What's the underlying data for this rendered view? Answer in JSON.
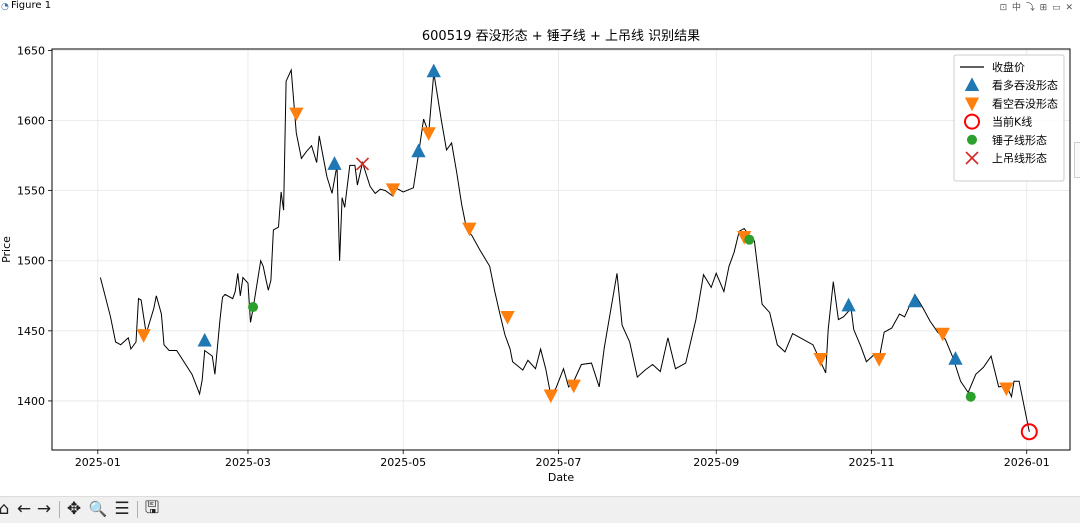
{
  "window": {
    "title": "Figure 1",
    "controls": "⊡ 中 ⤵ ⊞ ▭ ✕"
  },
  "toolbar": {
    "buttons": [
      {
        "name": "home-button",
        "glyph": "⌂"
      },
      {
        "name": "back-button",
        "glyph": "←"
      },
      {
        "name": "forward-button",
        "glyph": "→"
      },
      {
        "name": "pan-button",
        "glyph": "✥"
      },
      {
        "name": "zoom-button",
        "glyph": "🔍"
      },
      {
        "name": "configure-button",
        "glyph": "☰"
      },
      {
        "name": "save-button",
        "glyph": "🖫"
      }
    ]
  },
  "chart_data": {
    "type": "line",
    "title": "600519 吞没形态 + 锤子线 + 上吊线 识别结果",
    "xlabel": "Date",
    "ylabel": "Price",
    "xlim": [
      "2024-12-14",
      "2026-01-18"
    ],
    "ylim": [
      1365,
      1651
    ],
    "grid": true,
    "legend_position": "top-right",
    "x_ticks": [
      "2025-01",
      "2025-03",
      "2025-05",
      "2025-07",
      "2025-09",
      "2025-11",
      "2026-01"
    ],
    "x_tick_dates": [
      "2025-01-01",
      "2025-03-01",
      "2025-05-01",
      "2025-07-01",
      "2025-09-01",
      "2025-11-01",
      "2026-01-01"
    ],
    "y_ticks": [
      1400,
      1450,
      1500,
      1550,
      1600,
      1650
    ],
    "legend": [
      "收盘价",
      "看多吞没形态",
      "看空吞没形态",
      "当前K线",
      "锤子线形态",
      "上吊线形态"
    ],
    "colors": {
      "line": "#000000",
      "bullish": "#1f77b4",
      "bearish": "#ff7f0e",
      "hammer": "#2ca02c",
      "hanging": "#d62728",
      "current": "#ff0000"
    },
    "series": [
      {
        "name": "收盘价",
        "points": [
          [
            "2025-01-02",
            1488
          ],
          [
            "2025-01-06",
            1460
          ],
          [
            "2025-01-08",
            1442
          ],
          [
            "2025-01-10",
            1440
          ],
          [
            "2025-01-13",
            1445
          ],
          [
            "2025-01-14",
            1437
          ],
          [
            "2025-01-16",
            1442
          ],
          [
            "2025-01-17",
            1473
          ],
          [
            "2025-01-18",
            1472
          ],
          [
            "2025-01-20",
            1448
          ],
          [
            "2025-01-23",
            1466
          ],
          [
            "2025-01-24",
            1475
          ],
          [
            "2025-01-26",
            1462
          ],
          [
            "2025-01-27",
            1440
          ],
          [
            "2025-01-29",
            1436
          ],
          [
            "2025-02-01",
            1436
          ],
          [
            "2025-02-07",
            1419
          ],
          [
            "2025-02-10",
            1405
          ],
          [
            "2025-02-11",
            1415
          ],
          [
            "2025-02-12",
            1436
          ],
          [
            "2025-02-15",
            1432
          ],
          [
            "2025-02-16",
            1419
          ],
          [
            "2025-02-18",
            1458
          ],
          [
            "2025-02-19",
            1474
          ],
          [
            "2025-02-20",
            1476
          ],
          [
            "2025-02-23",
            1473
          ],
          [
            "2025-02-24",
            1478
          ],
          [
            "2025-02-25",
            1491
          ],
          [
            "2025-02-26",
            1475
          ],
          [
            "2025-02-27",
            1488
          ],
          [
            "2025-03-01",
            1484
          ],
          [
            "2025-03-02",
            1456
          ],
          [
            "2025-03-03",
            1466
          ],
          [
            "2025-03-06",
            1500
          ],
          [
            "2025-03-07",
            1496
          ],
          [
            "2025-03-08",
            1487
          ],
          [
            "2025-03-09",
            1479
          ],
          [
            "2025-03-10",
            1486
          ],
          [
            "2025-03-11",
            1522
          ],
          [
            "2025-03-13",
            1524
          ],
          [
            "2025-03-14",
            1549
          ],
          [
            "2025-03-15",
            1536
          ],
          [
            "2025-03-16",
            1628
          ],
          [
            "2025-03-18",
            1636
          ],
          [
            "2025-03-20",
            1591
          ],
          [
            "2025-03-22",
            1573
          ],
          [
            "2025-03-24",
            1578
          ],
          [
            "2025-03-26",
            1582
          ],
          [
            "2025-03-28",
            1570
          ],
          [
            "2025-03-29",
            1589
          ],
          [
            "2025-04-01",
            1560
          ],
          [
            "2025-04-03",
            1548
          ],
          [
            "2025-04-05",
            1568
          ],
          [
            "2025-04-06",
            1500
          ],
          [
            "2025-04-07",
            1545
          ],
          [
            "2025-04-08",
            1538
          ],
          [
            "2025-04-10",
            1568
          ],
          [
            "2025-04-12",
            1568
          ],
          [
            "2025-04-13",
            1554
          ],
          [
            "2025-04-15",
            1570
          ],
          [
            "2025-04-18",
            1553
          ],
          [
            "2025-04-20",
            1548
          ],
          [
            "2025-04-22",
            1551
          ],
          [
            "2025-04-24",
            1550
          ],
          [
            "2025-04-27",
            1546
          ],
          [
            "2025-04-28",
            1552
          ],
          [
            "2025-05-01",
            1549
          ],
          [
            "2025-05-05",
            1552
          ],
          [
            "2025-05-07",
            1576
          ],
          [
            "2025-05-09",
            1601
          ],
          [
            "2025-05-11",
            1591
          ],
          [
            "2025-05-13",
            1634
          ],
          [
            "2025-05-16",
            1600
          ],
          [
            "2025-05-18",
            1579
          ],
          [
            "2025-05-20",
            1584
          ],
          [
            "2025-05-22",
            1563
          ],
          [
            "2025-05-24",
            1540
          ],
          [
            "2025-05-26",
            1522
          ],
          [
            "2025-05-28",
            1518
          ],
          [
            "2025-05-31",
            1508
          ],
          [
            "2025-06-04",
            1496
          ],
          [
            "2025-06-06",
            1478
          ],
          [
            "2025-06-08",
            1462
          ],
          [
            "2025-06-10",
            1447
          ],
          [
            "2025-06-12",
            1437
          ],
          [
            "2025-06-13",
            1428
          ],
          [
            "2025-06-15",
            1425
          ],
          [
            "2025-06-17",
            1422
          ],
          [
            "2025-06-19",
            1429
          ],
          [
            "2025-06-22",
            1423
          ],
          [
            "2025-06-24",
            1437
          ],
          [
            "2025-06-26",
            1423
          ],
          [
            "2025-06-28",
            1404
          ],
          [
            "2025-06-30",
            1409
          ],
          [
            "2025-07-03",
            1423
          ],
          [
            "2025-07-05",
            1410
          ],
          [
            "2025-07-07",
            1414
          ],
          [
            "2025-07-10",
            1426
          ],
          [
            "2025-07-14",
            1427
          ],
          [
            "2025-07-17",
            1410
          ],
          [
            "2025-07-19",
            1438
          ],
          [
            "2025-07-24",
            1491
          ],
          [
            "2025-07-26",
            1454
          ],
          [
            "2025-07-29",
            1442
          ],
          [
            "2025-08-01",
            1417
          ],
          [
            "2025-08-04",
            1422
          ],
          [
            "2025-08-07",
            1426
          ],
          [
            "2025-08-10",
            1421
          ],
          [
            "2025-08-13",
            1445
          ],
          [
            "2025-08-16",
            1423
          ],
          [
            "2025-08-20",
            1427
          ],
          [
            "2025-08-24",
            1458
          ],
          [
            "2025-08-27",
            1490
          ],
          [
            "2025-08-30",
            1481
          ],
          [
            "2025-09-01",
            1491
          ],
          [
            "2025-09-04",
            1478
          ],
          [
            "2025-09-06",
            1496
          ],
          [
            "2025-09-08",
            1506
          ],
          [
            "2025-09-10",
            1521
          ],
          [
            "2025-09-12",
            1523
          ],
          [
            "2025-09-14",
            1518
          ],
          [
            "2025-09-16",
            1514
          ],
          [
            "2025-09-19",
            1469
          ],
          [
            "2025-09-22",
            1463
          ],
          [
            "2025-09-25",
            1440
          ],
          [
            "2025-09-28",
            1435
          ],
          [
            "2025-10-01",
            1448
          ],
          [
            "2025-10-05",
            1444
          ],
          [
            "2025-10-09",
            1440
          ],
          [
            "2025-10-12",
            1428
          ],
          [
            "2025-10-14",
            1420
          ],
          [
            "2025-10-15",
            1451
          ],
          [
            "2025-10-17",
            1485
          ],
          [
            "2025-10-19",
            1458
          ],
          [
            "2025-10-21",
            1460
          ],
          [
            "2025-10-24",
            1466
          ],
          [
            "2025-10-25",
            1451
          ],
          [
            "2025-10-28",
            1438
          ],
          [
            "2025-10-30",
            1428
          ],
          [
            "2025-11-02",
            1433
          ],
          [
            "2025-11-04",
            1430
          ],
          [
            "2025-11-06",
            1449
          ],
          [
            "2025-11-09",
            1452
          ],
          [
            "2025-11-12",
            1462
          ],
          [
            "2025-11-14",
            1460
          ],
          [
            "2025-11-18",
            1476
          ],
          [
            "2025-11-21",
            1467
          ],
          [
            "2025-11-24",
            1457
          ],
          [
            "2025-11-27",
            1449
          ],
          [
            "2025-11-30",
            1444
          ],
          [
            "2025-12-03",
            1431
          ],
          [
            "2025-12-06",
            1414
          ],
          [
            "2025-12-09",
            1406
          ],
          [
            "2025-12-12",
            1419
          ],
          [
            "2025-12-15",
            1424
          ],
          [
            "2025-12-18",
            1432
          ],
          [
            "2025-12-21",
            1410
          ],
          [
            "2025-12-24",
            1411
          ],
          [
            "2025-12-26",
            1403
          ],
          [
            "2025-12-27",
            1414
          ],
          [
            "2025-12-29",
            1414
          ],
          [
            "2026-01-02",
            1378
          ]
        ]
      },
      {
        "name": "看多吞没形态",
        "points": [
          [
            "2025-02-12",
            1443
          ],
          [
            "2025-04-04",
            1569
          ],
          [
            "2025-05-07",
            1578
          ],
          [
            "2025-05-13",
            1635
          ],
          [
            "2025-10-23",
            1468
          ],
          [
            "2025-11-18",
            1471
          ],
          [
            "2025-12-04",
            1430
          ]
        ]
      },
      {
        "name": "看空吞没形态",
        "points": [
          [
            "2025-01-19",
            1447
          ],
          [
            "2025-03-20",
            1605
          ],
          [
            "2025-04-27",
            1551
          ],
          [
            "2025-05-11",
            1591
          ],
          [
            "2025-05-27",
            1523
          ],
          [
            "2025-06-11",
            1460
          ],
          [
            "2025-06-28",
            1404
          ],
          [
            "2025-07-07",
            1411
          ],
          [
            "2025-09-12",
            1517
          ],
          [
            "2025-10-12",
            1430
          ],
          [
            "2025-11-04",
            1430
          ],
          [
            "2025-11-29",
            1448
          ],
          [
            "2025-12-24",
            1409
          ]
        ]
      },
      {
        "name": "当前K线",
        "points": [
          [
            "2026-01-02",
            1378
          ]
        ]
      },
      {
        "name": "锤子线形态",
        "points": [
          [
            "2025-03-03",
            1467
          ],
          [
            "2025-09-14",
            1515
          ],
          [
            "2025-12-10",
            1403
          ]
        ]
      },
      {
        "name": "上吊线形态",
        "points": [
          [
            "2025-04-15",
            1569
          ]
        ]
      }
    ]
  }
}
